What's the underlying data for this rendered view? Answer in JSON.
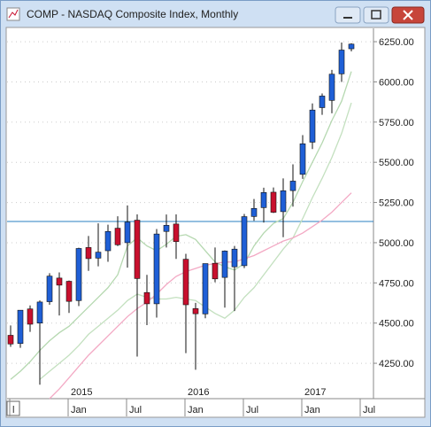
{
  "window": {
    "title": "COMP - NASDAQ Composite Index, Monthly"
  },
  "chart_data": {
    "type": "candlestick",
    "categories": [
      "l",
      null,
      null,
      null,
      null,
      null,
      "Jan",
      null,
      null,
      null,
      null,
      null,
      "Jul",
      null,
      null,
      null,
      null,
      null,
      "Jan",
      null,
      null,
      null,
      null,
      null,
      "Jul",
      null,
      null,
      null,
      null,
      null,
      "Jan",
      null,
      null,
      null,
      null,
      null
    ],
    "year_labels": [
      null,
      null,
      null,
      null,
      null,
      null,
      "2015",
      null,
      null,
      null,
      null,
      null,
      null,
      null,
      null,
      null,
      null,
      null,
      "2016",
      null,
      null,
      null,
      null,
      null,
      null,
      null,
      null,
      null,
      null,
      null,
      "2017",
      null,
      null,
      null,
      null,
      null
    ],
    "next_tick_label": "Jul",
    "open": [
      4424,
      4373,
      4588,
      4500,
      4633,
      4780,
      4760,
      4640,
      4970,
      4904,
      4950,
      5090,
      5000,
      5140,
      4690,
      4620,
      5070,
      5116,
      4897,
      4590,
      4557,
      4872,
      4784,
      4850,
      4857,
      5163,
      5218,
      5314,
      5193,
      5324,
      5425,
      5625,
      5840,
      5885,
      6050,
      6206
    ],
    "high": [
      4485,
      4580,
      4610,
      4641,
      4810,
      4815,
      4765,
      4969,
      5042,
      5120,
      5112,
      5164,
      5232,
      5176,
      4800,
      5085,
      5175,
      5176,
      4931,
      4626,
      4870,
      4970,
      4952,
      4980,
      5179,
      5272,
      5342,
      5343,
      5400,
      5487,
      5669,
      5866,
      5928,
      6075,
      6245,
      6240
    ],
    "low": [
      4352,
      4346,
      4445,
      4117,
      4614,
      4547,
      4563,
      4606,
      4825,
      4853,
      4881,
      4979,
      4845,
      4292,
      4487,
      4534,
      4970,
      4899,
      4313,
      4210,
      4530,
      4754,
      4596,
      4575,
      4842,
      5136,
      5125,
      5184,
      5034,
      5224,
      5397,
      5582,
      5795,
      5805,
      6000,
      6190
    ],
    "close": [
      4370,
      4580,
      4493,
      4631,
      4792,
      4736,
      4635,
      4964,
      4901,
      4941,
      5070,
      4987,
      5128,
      4777,
      4620,
      5054,
      5108,
      5007,
      4614,
      4558,
      4870,
      4775,
      4948,
      4960,
      5162,
      5213,
      5312,
      5189,
      5323,
      5383,
      5615,
      5825,
      5912,
      6048,
      6198,
      6235
    ],
    "up_color": "#1f5fd6",
    "down_color": "#c8102e",
    "lines": [
      {
        "color": "#b5d8b0",
        "values": [
          4150,
          4200,
          4260,
          4330,
          4390,
          4440,
          4480,
          4540,
          4600,
          4660,
          4720,
          4800,
          4980,
          5030,
          4980,
          4950,
          4990,
          5040,
          5050,
          5020,
          4950,
          4880,
          4850,
          4830,
          4870,
          4980,
          5060,
          5120,
          5150,
          5250,
          5380,
          5500,
          5620,
          5760,
          5880,
          6065
        ]
      },
      {
        "color": "#c3e0bf",
        "values": [
          null,
          null,
          null,
          4150,
          4200,
          4250,
          4300,
          4360,
          4430,
          4480,
          4530,
          4580,
          4640,
          4680,
          4660,
          4650,
          4650,
          4660,
          4650,
          4640,
          4600,
          4560,
          4530,
          4580,
          4660,
          4720,
          4800,
          4880,
          4960,
          5030,
          5150,
          5280,
          5400,
          5530,
          5680,
          5870
        ]
      },
      {
        "color": "#f3a9c4",
        "values": [
          null,
          null,
          null,
          null,
          4030,
          4090,
          4160,
          4230,
          4300,
          4360,
          4420,
          4480,
          4540,
          4590,
          4630,
          4680,
          4740,
          4790,
          4820,
          4840,
          4860,
          4870,
          4880,
          4880,
          4900,
          4920,
          4950,
          4980,
          5010,
          5030,
          5060,
          5100,
          5140,
          5190,
          5250,
          5310
        ]
      }
    ],
    "reference_line": {
      "value": 5132,
      "color": "#2a7fc1"
    },
    "ylim": [
      4030,
      6333
    ],
    "yticks": [
      {
        "value": 4250,
        "label": "4250.00"
      },
      {
        "value": 4500,
        "label": "4500.00"
      },
      {
        "value": 4750,
        "label": "4750.00"
      },
      {
        "value": 5000,
        "label": "5000.00"
      },
      {
        "value": 5250,
        "label": "5250.00"
      },
      {
        "value": 5500,
        "label": "5500.00"
      },
      {
        "value": 5750,
        "label": "5750.00"
      },
      {
        "value": 6000,
        "label": "6000.00"
      },
      {
        "value": 6250,
        "label": "6250.00"
      }
    ],
    "grid": true
  }
}
